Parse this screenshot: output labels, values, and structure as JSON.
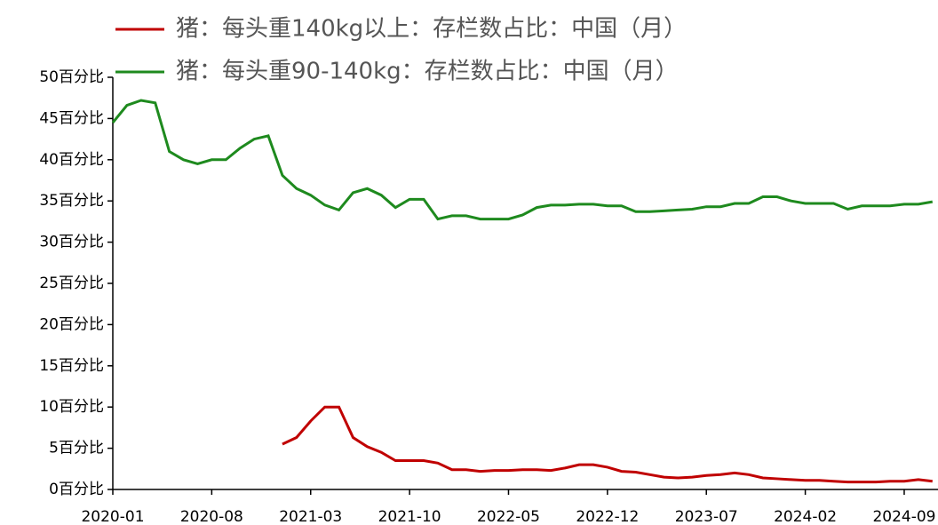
{
  "chart_data": {
    "type": "line",
    "categories": [
      "2020-01",
      null,
      null,
      null,
      null,
      null,
      null,
      "2020-08",
      null,
      null,
      null,
      null,
      null,
      null,
      "2021-03",
      null,
      null,
      null,
      null,
      null,
      null,
      "2021-10",
      null,
      null,
      null,
      null,
      null,
      null,
      "2022-05",
      null,
      null,
      null,
      null,
      null,
      null,
      "2022-12",
      null,
      null,
      null,
      null,
      null,
      null,
      "2023-07",
      null,
      null,
      null,
      null,
      null,
      null,
      "2024-02",
      null,
      null,
      null,
      null,
      null,
      null,
      "2024-09",
      null,
      null
    ],
    "series": [
      {
        "name": "猪：每头重140kg以上：存栏数占比：中国（月）",
        "color": "#c00000",
        "values": [
          null,
          null,
          null,
          null,
          null,
          null,
          null,
          null,
          null,
          null,
          null,
          null,
          5.5,
          6.3,
          8.3,
          10.0,
          10.0,
          6.3,
          5.2,
          4.5,
          3.5,
          3.5,
          3.5,
          3.2,
          2.4,
          2.4,
          2.2,
          2.3,
          2.3,
          2.4,
          2.4,
          2.3,
          2.6,
          3.0,
          3.0,
          2.7,
          2.2,
          2.1,
          1.8,
          1.5,
          1.4,
          1.5,
          1.7,
          1.8,
          2.0,
          1.8,
          1.4,
          1.3,
          1.2,
          1.1,
          1.1,
          1.0,
          0.9,
          0.9,
          0.9,
          1.0,
          1.0,
          1.2,
          1.0
        ]
      },
      {
        "name": "猪：每头重90-140kg：存栏数占比：中国（月）",
        "color": "#1e8a1e",
        "values": [
          44.5,
          46.6,
          47.2,
          46.9,
          41.0,
          40.0,
          39.5,
          40.0,
          40.0,
          41.4,
          42.5,
          42.9,
          38.1,
          36.5,
          35.7,
          34.5,
          33.9,
          36.0,
          36.5,
          35.7,
          34.2,
          35.2,
          35.2,
          32.8,
          33.2,
          33.2,
          32.8,
          32.8,
          32.8,
          33.3,
          34.2,
          34.5,
          34.5,
          34.6,
          34.6,
          34.4,
          34.4,
          33.7,
          33.7,
          33.8,
          33.9,
          34.0,
          34.3,
          34.3,
          34.7,
          34.7,
          35.5,
          35.5,
          35.0,
          34.7,
          34.7,
          34.7,
          34.0,
          34.4,
          34.4,
          34.4,
          34.6,
          34.6,
          34.9
        ]
      }
    ],
    "ylim": [
      0,
      50
    ],
    "yticks": [
      {
        "value": 0,
        "label": "0百分比"
      },
      {
        "value": 5,
        "label": "5百分比"
      },
      {
        "value": 10,
        "label": "10百分比"
      },
      {
        "value": 15,
        "label": "15百分比"
      },
      {
        "value": 20,
        "label": "20百分比"
      },
      {
        "value": 25,
        "label": "25百分比"
      },
      {
        "value": 30,
        "label": "30百分比"
      },
      {
        "value": 35,
        "label": "35百分比"
      },
      {
        "value": 40,
        "label": "40百分比"
      },
      {
        "value": 45,
        "label": "45百分比"
      },
      {
        "value": 50,
        "label": "50百分比"
      }
    ],
    "legend": "top"
  }
}
